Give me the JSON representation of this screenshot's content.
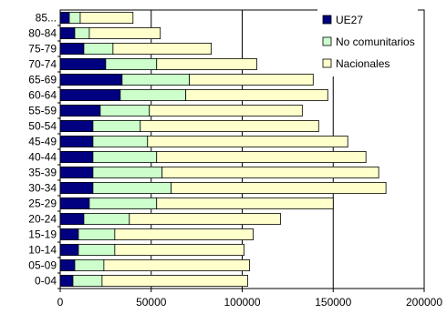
{
  "chart_data": {
    "type": "bar",
    "orientation": "horizontal",
    "stacked": true,
    "categories": [
      "0-04",
      "05-09",
      "10-14",
      "15-19",
      "20-24",
      "25-29",
      "30-34",
      "35-39",
      "40-44",
      "45-49",
      "50-54",
      "55-59",
      "60-64",
      "65-69",
      "70-74",
      "75-79",
      "80-84",
      "85..."
    ],
    "series": [
      {
        "name": "UE27",
        "color": "#000080",
        "values": [
          7000,
          8000,
          10000,
          10000,
          13000,
          16000,
          18000,
          18000,
          18000,
          18000,
          18000,
          22000,
          33000,
          34000,
          25000,
          13000,
          8000,
          5000
        ]
      },
      {
        "name": "No comunitarios",
        "color": "#ccffcc",
        "values": [
          16000,
          16000,
          20000,
          20000,
          25000,
          37000,
          43000,
          38000,
          35000,
          30000,
          26000,
          27000,
          36000,
          37000,
          28000,
          16000,
          8000,
          6000
        ]
      },
      {
        "name": "Nacionales",
        "color": "#ffffcc",
        "values": [
          80000,
          80000,
          71000,
          76000,
          83000,
          97000,
          118000,
          119000,
          115000,
          110000,
          98000,
          84000,
          78000,
          68000,
          55000,
          54000,
          39000,
          29000
        ]
      }
    ],
    "xlim": [
      0,
      200000
    ],
    "xticks": [
      "0",
      "50000",
      "100000",
      "150000",
      "200000"
    ],
    "gridlines": "vertical",
    "legend_position": "top-right"
  }
}
